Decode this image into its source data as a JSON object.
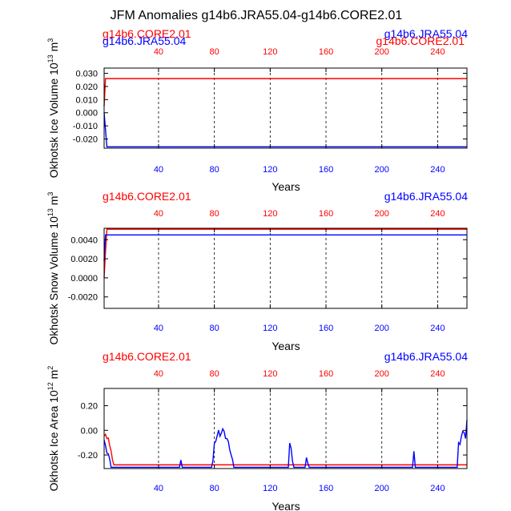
{
  "title": "JFM Anomalies g14b6.JRA55.04-g14b6.CORE2.01",
  "colors": {
    "jra": "#0000ff",
    "core": "#ff0000",
    "axis": "#000000",
    "grid": "#000000"
  },
  "chart_data": [
    {
      "type": "line",
      "ylabel_main": "Okhotsk Ice Volume 10",
      "ylabel_exp": "13",
      "ylabel_unit": " m",
      "ylabel_unit_exp": "3",
      "xlabel": "Years",
      "xlim": [
        1,
        261
      ],
      "ylim": [
        -0.027,
        0.034
      ],
      "yticks": [
        -0.02,
        -0.01,
        0.0,
        0.01,
        0.02,
        0.03
      ],
      "ytick_labels": [
        "-0.020",
        "-0.010",
        "0.000",
        "0.010",
        "0.020",
        "0.030"
      ],
      "xticks_bottom": [
        40,
        80,
        120,
        160,
        200,
        240
      ],
      "xtick_labels_bottom": [
        "40",
        "80",
        "120",
        "160",
        "200",
        "240"
      ],
      "xticks_top": [
        40,
        80,
        120,
        160,
        200,
        240
      ],
      "xtick_labels_top": [
        "40",
        "80",
        "120",
        "160",
        "200",
        "240"
      ],
      "vgrid": [
        40,
        80,
        120,
        160,
        200,
        240
      ],
      "legend_left_red": "g14b6.CORE2.01",
      "legend_left_blue": "g14b6.JRA55.04",
      "legend_right_red": "g14b6.CORE2.01",
      "legend_right_blue": "g14b6.JRA55.04",
      "series": [
        {
          "name": "g14b6.JRA55.04",
          "color": "#0000ff",
          "x_start": 1,
          "x_step": 1,
          "amplitude": 0.014,
          "amp_max": 0.032,
          "amp_min": -0.026,
          "seed": 11
        },
        {
          "name": "g14b6.CORE2.01",
          "color": "#ff0000",
          "x_start": 1,
          "x_step": 1,
          "amplitude": 0.009,
          "amp_max": 0.026,
          "amp_min": -0.022,
          "seed": 29
        }
      ]
    },
    {
      "type": "line",
      "ylabel_main": "Okhotsk Snow Volume 10",
      "ylabel_exp": "13",
      "ylabel_unit": " m",
      "ylabel_unit_exp": "3",
      "xlabel": "Years",
      "xlim": [
        1,
        261
      ],
      "ylim": [
        -0.0032,
        0.0052
      ],
      "yticks": [
        -0.002,
        0.0,
        0.002,
        0.004
      ],
      "ytick_labels": [
        "-0.0020",
        "0.0000",
        "0.0020",
        "0.0040"
      ],
      "xticks_bottom": [
        40,
        80,
        120,
        160,
        200,
        240
      ],
      "xtick_labels_bottom": [
        "40",
        "80",
        "120",
        "160",
        "200",
        "240"
      ],
      "xticks_top": [
        40,
        80,
        120,
        160,
        200,
        240
      ],
      "xtick_labels_top": [
        "40",
        "80",
        "120",
        "160",
        "200",
        "240"
      ],
      "vgrid": [
        40,
        80,
        120,
        160,
        200,
        240
      ],
      "legend_left_red": "g14b6.CORE2.01",
      "legend_right_blue": "g14b6.JRA55.04",
      "series": [
        {
          "name": "g14b6.JRA55.04",
          "color": "#0000ff",
          "x_start": 1,
          "x_step": 1,
          "amplitude": 0.0016,
          "amp_max": 0.0045,
          "amp_min": -0.003,
          "seed": 47
        },
        {
          "name": "g14b6.CORE2.01",
          "color": "#ff0000",
          "x_start": 1,
          "x_step": 1,
          "amplitude": 0.0013,
          "amp_max": 0.0051,
          "amp_min": -0.0028,
          "seed": 73
        }
      ]
    },
    {
      "type": "line",
      "ylabel_main": "Okhotsk Ice Area 10",
      "ylabel_exp": "12",
      "ylabel_unit": " m",
      "ylabel_unit_exp": "2",
      "xlabel": "Years",
      "xlim": [
        1,
        261
      ],
      "ylim": [
        -0.31,
        0.34
      ],
      "yticks": [
        -0.2,
        0.0,
        0.2
      ],
      "ytick_labels": [
        "-0.20",
        "0.00",
        "0.20"
      ],
      "xticks_bottom": [
        40,
        80,
        120,
        160,
        200,
        240
      ],
      "xtick_labels_bottom": [
        "40",
        "80",
        "120",
        "160",
        "200",
        "240"
      ],
      "xticks_top": [
        40,
        80,
        120,
        160,
        200,
        240
      ],
      "xtick_labels_top": [
        "40",
        "80",
        "120",
        "160",
        "200",
        "240"
      ],
      "vgrid": [
        40,
        80,
        120,
        160,
        200,
        240
      ],
      "legend_left_red": "g14b6.CORE2.01",
      "legend_right_blue": "g14b6.JRA55.04",
      "series": [
        {
          "name": "g14b6.JRA55.04",
          "color": "#0000ff",
          "x_start": 1,
          "x_step": 1,
          "amplitude": 0.13,
          "amp_max": 0.31,
          "amp_min": -0.3,
          "seed": 101
        },
        {
          "name": "g14b6.CORE2.01",
          "color": "#ff0000",
          "x_start": 1,
          "x_step": 1,
          "amplitude": 0.1,
          "amp_max": 0.31,
          "amp_min": -0.28,
          "seed": 131
        }
      ]
    }
  ]
}
